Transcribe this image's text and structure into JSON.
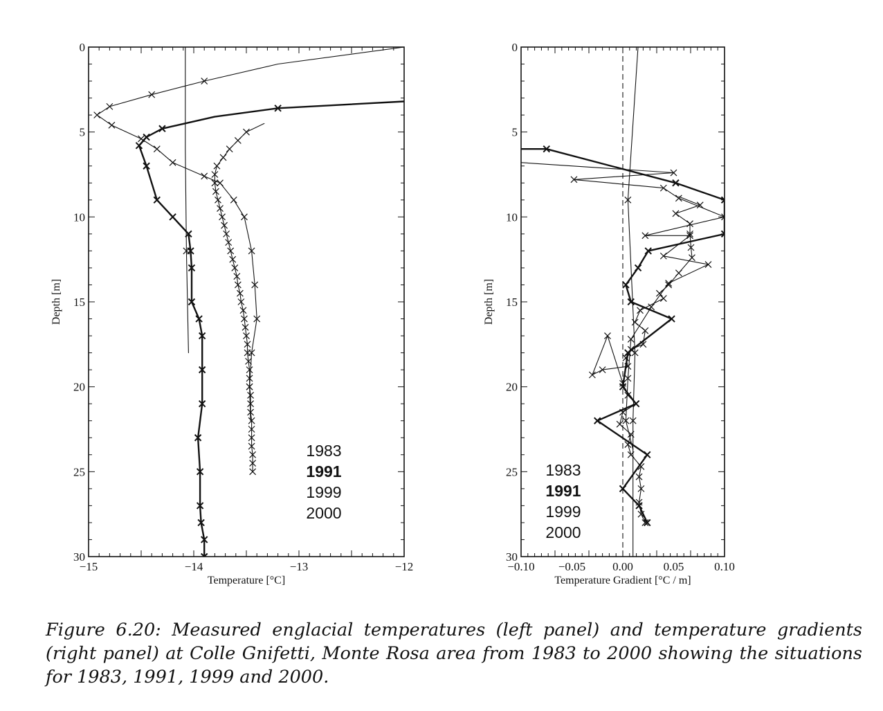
{
  "caption": "Figure 6.20: Measured englacial temperatures (left panel) and temperature gradients (right panel) at Colle Gnifetti, Monte Rosa area from 1983 to 2000 showing the situations for 1983, 1991, 1999 and 2000.",
  "chart_data": [
    {
      "type": "line",
      "xlabel": "Temperature [°C]",
      "ylabel": "Depth [m]",
      "xlim": [
        -15,
        -12
      ],
      "ylim": [
        30,
        0
      ],
      "y_inverted": true,
      "xticks": [
        -15,
        -14,
        -13,
        -12
      ],
      "yticks": [
        0,
        5,
        10,
        15,
        20,
        25,
        30
      ],
      "legend_entries": [
        "1983",
        "1991",
        "1999",
        "2000"
      ],
      "legend_bold": [
        false,
        true,
        false,
        false
      ],
      "legend_position": "lower-right",
      "grid": false,
      "series": [
        {
          "name": "1983",
          "style": "thin",
          "markers": [
            2,
            6,
            12,
            18
          ],
          "points": [
            [
              -14.08,
              0
            ],
            [
              -14.08,
              6
            ],
            [
              -14.07,
              12
            ],
            [
              -14.05,
              18
            ]
          ]
        },
        {
          "name": "1991",
          "style": "bold",
          "markers": [
            1,
            3,
            4,
            5,
            6,
            7,
            8,
            9,
            10,
            11,
            12,
            13,
            14,
            15,
            16,
            17,
            18,
            19,
            20,
            21,
            22
          ],
          "points": [
            [
              -12,
              3.2
            ],
            [
              -13.2,
              3.6
            ],
            [
              -13.8,
              4.1
            ],
            [
              -14.3,
              4.8
            ],
            [
              -14.45,
              5.3
            ],
            [
              -14.52,
              5.8
            ],
            [
              -14.45,
              7
            ],
            [
              -14.35,
              9
            ],
            [
              -14.2,
              10
            ],
            [
              -14.05,
              11
            ],
            [
              -14.03,
              12
            ],
            [
              -14.02,
              13
            ],
            [
              -14.02,
              15
            ],
            [
              -13.95,
              16
            ],
            [
              -13.92,
              17
            ],
            [
              -13.92,
              19
            ],
            [
              -13.92,
              21
            ],
            [
              -13.96,
              23
            ],
            [
              -13.94,
              25
            ],
            [
              -13.94,
              27
            ],
            [
              -13.93,
              28
            ],
            [
              -13.9,
              29
            ],
            [
              -13.9,
              30
            ]
          ]
        },
        {
          "name": "1999",
          "style": "thin",
          "markers": [
            2,
            3,
            4,
            5,
            6,
            7,
            8,
            9,
            10,
            11,
            12,
            13,
            14,
            15,
            16,
            17,
            18
          ],
          "points": [
            [
              -12,
              0
            ],
            [
              -13.2,
              1
            ],
            [
              -13.9,
              2
            ],
            [
              -14.4,
              2.8
            ],
            [
              -14.8,
              3.5
            ],
            [
              -14.92,
              4
            ],
            [
              -14.78,
              4.6
            ],
            [
              -14.5,
              5.4
            ],
            [
              -14.35,
              6
            ],
            [
              -14.2,
              6.8
            ],
            [
              -13.9,
              7.6
            ],
            [
              -13.75,
              8
            ],
            [
              -13.62,
              9
            ],
            [
              -13.52,
              10
            ],
            [
              -13.45,
              12
            ],
            [
              -13.42,
              14
            ],
            [
              -13.4,
              16
            ],
            [
              -13.45,
              18
            ],
            [
              -13.47,
              20
            ],
            [
              -13.46,
              22
            ]
          ]
        },
        {
          "name": "2000",
          "style": "thin",
          "markers": [
            1,
            2,
            3,
            4,
            5,
            6,
            7,
            8,
            9,
            10,
            11,
            12,
            13,
            14,
            15,
            16,
            17,
            18,
            19,
            20,
            21,
            22,
            23,
            24,
            25,
            26,
            27,
            28,
            29,
            30,
            31,
            32,
            33,
            34,
            35,
            36,
            37,
            38,
            39,
            40,
            41
          ],
          "points": [
            [
              -13.33,
              4.5
            ],
            [
              -13.5,
              5
            ],
            [
              -13.58,
              5.5
            ],
            [
              -13.66,
              6
            ],
            [
              -13.72,
              6.5
            ],
            [
              -13.78,
              7
            ],
            [
              -13.8,
              7.5
            ],
            [
              -13.8,
              8
            ],
            [
              -13.79,
              8.5
            ],
            [
              -13.77,
              9
            ],
            [
              -13.75,
              9.5
            ],
            [
              -13.73,
              10
            ],
            [
              -13.71,
              10.5
            ],
            [
              -13.69,
              11
            ],
            [
              -13.67,
              11.5
            ],
            [
              -13.65,
              12
            ],
            [
              -13.63,
              12.5
            ],
            [
              -13.61,
              13
            ],
            [
              -13.59,
              13.5
            ],
            [
              -13.58,
              14
            ],
            [
              -13.56,
              14.5
            ],
            [
              -13.55,
              15
            ],
            [
              -13.53,
              15.5
            ],
            [
              -13.52,
              16
            ],
            [
              -13.51,
              16.5
            ],
            [
              -13.5,
              17
            ],
            [
              -13.49,
              17.5
            ],
            [
              -13.49,
              18
            ],
            [
              -13.48,
              18.5
            ],
            [
              -13.47,
              19
            ],
            [
              -13.47,
              19.5
            ],
            [
              -13.47,
              20
            ],
            [
              -13.46,
              20.5
            ],
            [
              -13.46,
              21
            ],
            [
              -13.46,
              21.5
            ],
            [
              -13.45,
              22
            ],
            [
              -13.45,
              22.5
            ],
            [
              -13.45,
              23
            ],
            [
              -13.45,
              23.5
            ],
            [
              -13.44,
              24
            ],
            [
              -13.44,
              24.5
            ],
            [
              -13.44,
              25
            ]
          ]
        }
      ]
    },
    {
      "type": "line",
      "xlabel": "Temperature Gradient [°C / m]",
      "ylabel": "Depth [m]",
      "xlim": [
        -0.1,
        0.1
      ],
      "ylim": [
        30,
        0
      ],
      "y_inverted": true,
      "xticks": [
        -0.1,
        -0.05,
        0.0,
        0.05,
        0.1
      ],
      "xtick_labels": [
        "−0.10",
        "−0.05",
        "0.00",
        "0.05",
        "0.10"
      ],
      "yticks": [
        0,
        5,
        10,
        15,
        20,
        25,
        30
      ],
      "zero_line": "dashed",
      "legend_entries": [
        "1983",
        "1991",
        "1999",
        "2000"
      ],
      "legend_bold": [
        false,
        true,
        false,
        false
      ],
      "legend_position": "lower-left",
      "grid": false,
      "series": [
        {
          "name": "1983",
          "style": "thin",
          "markers": [
            1,
            2,
            3
          ],
          "points": [
            [
              0.015,
              0
            ],
            [
              0.005,
              9
            ],
            [
              0.012,
              18
            ],
            [
              0.01,
              22
            ],
            [
              0.01,
              30
            ]
          ]
        },
        {
          "name": "1991",
          "style": "bold",
          "markers": [
            1,
            2,
            3,
            4,
            5,
            6,
            7,
            8,
            9,
            10,
            11,
            12,
            13,
            14,
            15,
            16,
            17,
            18,
            19,
            20
          ],
          "points": [
            [
              -0.1,
              6
            ],
            [
              -0.075,
              6
            ],
            [
              0.052,
              8
            ],
            [
              0.1,
              9
            ],
            [
              0.1,
              11
            ],
            [
              0.025,
              12
            ],
            [
              0.015,
              13
            ],
            [
              0.003,
              14
            ],
            [
              0.008,
              15
            ],
            [
              0.048,
              16
            ],
            [
              0.005,
              18
            ],
            [
              0.0,
              20
            ],
            [
              0.013,
              21
            ],
            [
              -0.025,
              22
            ],
            [
              0.024,
              24
            ],
            [
              0.0,
              26
            ],
            [
              0.016,
              27
            ],
            [
              0.024,
              28
            ]
          ]
        },
        {
          "name": "1999",
          "style": "thin",
          "markers": [
            1,
            2,
            3,
            4,
            5,
            6,
            7,
            8,
            9,
            10,
            11,
            12,
            13,
            14
          ],
          "points": [
            [
              -0.1,
              6.8
            ],
            [
              0.05,
              7.4
            ],
            [
              -0.048,
              7.8
            ],
            [
              0.04,
              8.3
            ],
            [
              0.055,
              8.9
            ],
            [
              0.1,
              10
            ],
            [
              0.022,
              11.1
            ],
            [
              0.066,
              11.1
            ],
            [
              0.04,
              12.3
            ],
            [
              0.084,
              12.8
            ],
            [
              0.045,
              13.9
            ],
            [
              0.028,
              15.3
            ],
            [
              0.008,
              17.2
            ],
            [
              0.005,
              19.5
            ],
            [
              0.003,
              22
            ],
            [
              0.01,
              23.7
            ]
          ]
        },
        {
          "name": "2000",
          "style": "thin",
          "markers": [
            1,
            2,
            3,
            4,
            5,
            6,
            7,
            8,
            9,
            10,
            11,
            12,
            13,
            14,
            15,
            16,
            17,
            18,
            19,
            20,
            21,
            22,
            23,
            24,
            25,
            26,
            27,
            28,
            29,
            30,
            31,
            32,
            33,
            34,
            35
          ],
          "points": [
            [
              0.055,
              8.8
            ],
            [
              0.076,
              9.3
            ],
            [
              0.052,
              9.8
            ],
            [
              0.066,
              10.4
            ],
            [
              0.066,
              11.0
            ],
            [
              0.067,
              11.8
            ],
            [
              0.068,
              12.4
            ],
            [
              0.055,
              13.3
            ],
            [
              0.045,
              14.0
            ],
            [
              0.036,
              14.5
            ],
            [
              0.04,
              14.8
            ],
            [
              0.017,
              15.5
            ],
            [
              0.012,
              16.2
            ],
            [
              0.022,
              16.7
            ],
            [
              0.02,
              17.5
            ],
            [
              0.008,
              17.8
            ],
            [
              0.003,
              18.3
            ],
            [
              0.005,
              18.8
            ],
            [
              -0.02,
              19.0
            ],
            [
              -0.03,
              19.3
            ],
            [
              -0.015,
              17.0
            ],
            [
              0.0,
              19.8
            ],
            [
              0.005,
              20.5
            ],
            [
              0.013,
              21.0
            ],
            [
              0.0,
              21.5
            ],
            [
              -0.003,
              22.2
            ],
            [
              0.008,
              22.8
            ],
            [
              0.005,
              23.4
            ],
            [
              0.008,
              24.0
            ],
            [
              0.018,
              24.7
            ],
            [
              0.016,
              25.3
            ],
            [
              0.018,
              26.0
            ],
            [
              0.016,
              26.8
            ],
            [
              0.018,
              27.5
            ],
            [
              0.022,
              28.0
            ]
          ]
        }
      ]
    }
  ]
}
